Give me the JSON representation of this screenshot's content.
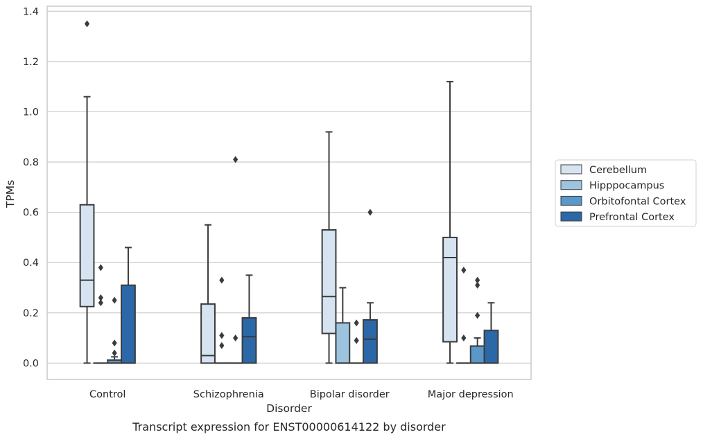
{
  "caption": "Transcript expression for ENST00000614122 by disorder",
  "chart_data": {
    "type": "box",
    "xlabel": "Disorder",
    "ylabel": "TPMs",
    "ylim": [
      -0.065,
      1.42
    ],
    "yticks": [
      0.0,
      0.2,
      0.4,
      0.6,
      0.8,
      1.0,
      1.2,
      1.4
    ],
    "ytick_labels": [
      "0.0",
      "0.2",
      "0.4",
      "0.6",
      "0.8",
      "1.0",
      "1.2",
      "1.4"
    ],
    "grid": "horizontal",
    "legend_position": "right",
    "categories": [
      "Control",
      "Schizophrenia",
      "Bipolar disorder",
      "Major depression"
    ],
    "series": [
      {
        "name": "Cerebellum",
        "color": "#d6e4f2",
        "boxes": [
          {
            "whislo": 0.0,
            "q1": 0.225,
            "med": 0.33,
            "q3": 0.63,
            "whishi": 1.06,
            "fliers": [
              1.35
            ]
          },
          {
            "whislo": 0.0,
            "q1": 0.0,
            "med": 0.03,
            "q3": 0.235,
            "whishi": 0.55,
            "fliers": []
          },
          {
            "whislo": 0.0,
            "q1": 0.118,
            "med": 0.265,
            "q3": 0.53,
            "whishi": 0.92,
            "fliers": []
          },
          {
            "whislo": 0.0,
            "q1": 0.085,
            "med": 0.42,
            "q3": 0.5,
            "whishi": 1.12,
            "fliers": []
          }
        ]
      },
      {
        "name": "Hipppocampus",
        "color": "#9dc3df",
        "boxes": [
          {
            "whislo": 0.0,
            "q1": 0.0,
            "med": 0.0,
            "q3": 0.0,
            "whishi": 0.0,
            "fliers": [
              0.24,
              0.26,
              0.38
            ]
          },
          {
            "whislo": 0.0,
            "q1": 0.0,
            "med": 0.0,
            "q3": 0.0,
            "whishi": 0.0,
            "fliers": [
              0.07,
              0.11,
              0.33
            ]
          },
          {
            "whislo": 0.0,
            "q1": 0.0,
            "med": 0.0,
            "q3": 0.16,
            "whishi": 0.3,
            "fliers": []
          },
          {
            "whislo": 0.0,
            "q1": 0.0,
            "med": 0.0,
            "q3": 0.0,
            "whishi": 0.0,
            "fliers": [
              0.1,
              0.37
            ]
          }
        ]
      },
      {
        "name": "Orbitofontal Cortex",
        "color": "#5a98c9",
        "boxes": [
          {
            "whislo": 0.0,
            "q1": 0.0,
            "med": 0.0,
            "q3": 0.012,
            "whishi": 0.025,
            "fliers": [
              0.04,
              0.08,
              0.25
            ]
          },
          {
            "whislo": 0.0,
            "q1": 0.0,
            "med": 0.0,
            "q3": 0.0,
            "whishi": 0.0,
            "fliers": [
              0.1,
              0.81
            ]
          },
          {
            "whislo": 0.0,
            "q1": 0.0,
            "med": 0.0,
            "q3": 0.0,
            "whishi": 0.0,
            "fliers": [
              0.09,
              0.16
            ]
          },
          {
            "whislo": 0.0,
            "q1": 0.0,
            "med": 0.0,
            "q3": 0.068,
            "whishi": 0.1,
            "fliers": [
              0.19,
              0.31,
              0.33
            ]
          }
        ]
      },
      {
        "name": "Prefrontal Cortex",
        "color": "#2b68a8",
        "boxes": [
          {
            "whislo": 0.0,
            "q1": 0.0,
            "med": 0.0,
            "q3": 0.31,
            "whishi": 0.46,
            "fliers": []
          },
          {
            "whislo": 0.0,
            "q1": 0.0,
            "med": 0.105,
            "q3": 0.18,
            "whishi": 0.35,
            "fliers": []
          },
          {
            "whislo": 0.0,
            "q1": 0.0,
            "med": 0.095,
            "q3": 0.172,
            "whishi": 0.24,
            "fliers": [
              0.6
            ]
          },
          {
            "whislo": 0.0,
            "q1": 0.0,
            "med": 0.0,
            "q3": 0.13,
            "whishi": 0.24,
            "fliers": []
          }
        ]
      }
    ],
    "colors": {
      "edge": "#3b3b3b",
      "grid": "#cccccc",
      "axes_frame": "#c8c8c8"
    }
  }
}
